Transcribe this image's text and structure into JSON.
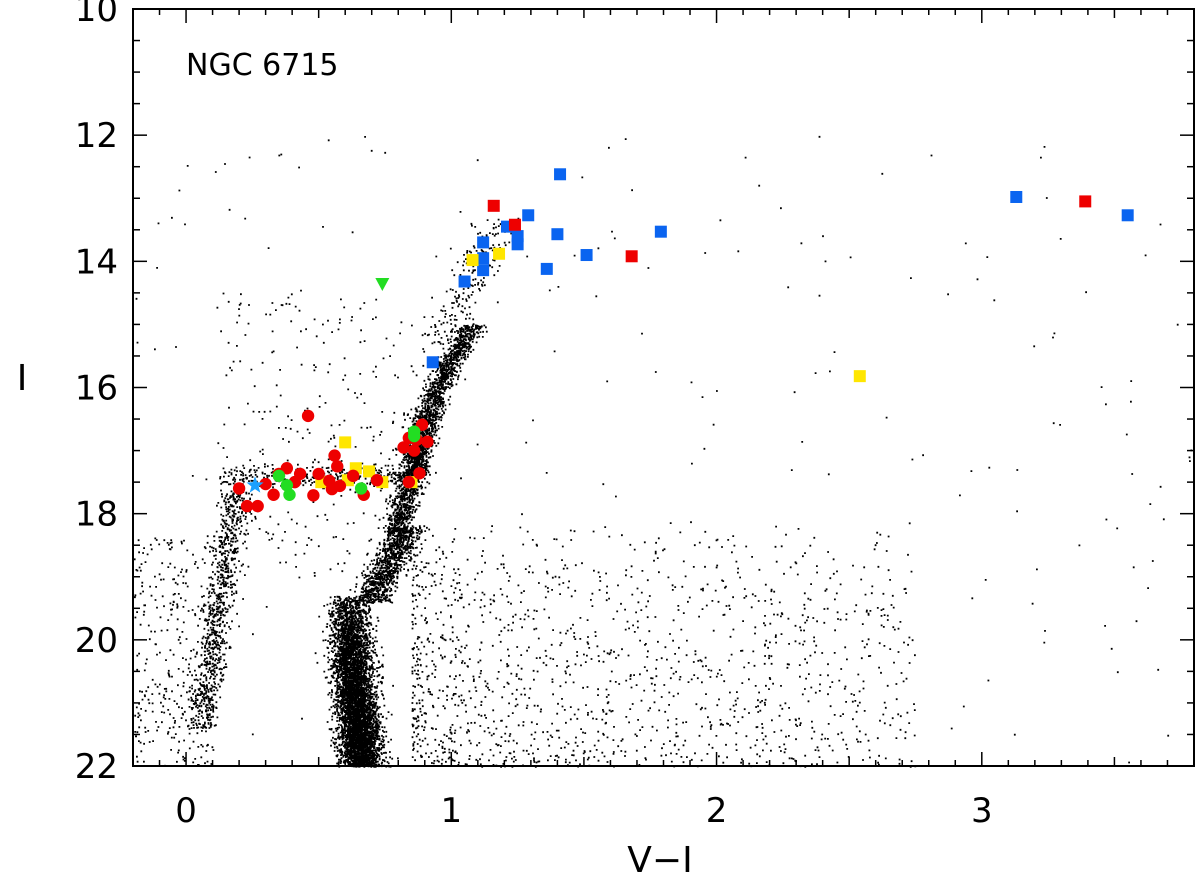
{
  "chart_data": {
    "type": "scatter",
    "title": "",
    "annotation": "NGC 6715",
    "xlabel": "V−I",
    "ylabel": "I",
    "xlim": [
      -0.2,
      3.8
    ],
    "ylim": [
      22,
      10
    ],
    "y_inverted": true,
    "x_major_ticks": [
      0,
      1,
      2,
      3
    ],
    "y_major_ticks": [
      10,
      12,
      14,
      16,
      18,
      20,
      22
    ],
    "x_tick_labels": [
      "0",
      "1",
      "2",
      "3"
    ],
    "y_tick_labels": [
      "10",
      "12",
      "14",
      "16",
      "18",
      "20",
      "22"
    ],
    "grid": false,
    "colors": {
      "background_stars": "#000000",
      "red": "#ee0000",
      "green": "#22dd22",
      "yellow": "#ffe600",
      "blue": "#0a64f0",
      "star_blue": "#1aa0ff"
    },
    "series": [
      {
        "marker": "square",
        "color": "blue",
        "points": [
          [
            1.41,
            12.62
          ],
          [
            1.29,
            13.27
          ],
          [
            1.21,
            13.45
          ],
          [
            1.25,
            13.6
          ],
          [
            1.25,
            13.73
          ],
          [
            1.12,
            13.7
          ],
          [
            1.12,
            13.95
          ],
          [
            1.12,
            14.14
          ],
          [
            1.05,
            14.32
          ],
          [
            1.4,
            13.57
          ],
          [
            1.51,
            13.9
          ],
          [
            1.36,
            14.12
          ],
          [
            1.79,
            13.53
          ],
          [
            0.93,
            15.6
          ],
          [
            3.13,
            12.98
          ],
          [
            3.55,
            13.27
          ]
        ]
      },
      {
        "marker": "square",
        "color": "red",
        "points": [
          [
            1.16,
            13.12
          ],
          [
            1.24,
            13.42
          ],
          [
            1.68,
            13.92
          ],
          [
            3.39,
            13.05
          ]
        ]
      },
      {
        "marker": "square",
        "color": "yellow",
        "points": [
          [
            1.08,
            13.98
          ],
          [
            1.18,
            13.88
          ],
          [
            0.6,
            16.87
          ],
          [
            0.51,
            17.5
          ],
          [
            0.52,
            17.5
          ],
          [
            0.61,
            17.47
          ],
          [
            0.64,
            17.28
          ],
          [
            0.69,
            17.33
          ],
          [
            0.74,
            17.5
          ],
          [
            0.85,
            17.5
          ],
          [
            2.54,
            15.82
          ]
        ]
      },
      {
        "marker": "circle",
        "color": "red",
        "points": [
          [
            0.2,
            17.6
          ],
          [
            0.23,
            17.88
          ],
          [
            0.27,
            17.88
          ],
          [
            0.3,
            17.53
          ],
          [
            0.33,
            17.7
          ],
          [
            0.35,
            17.37
          ],
          [
            0.38,
            17.28
          ],
          [
            0.41,
            17.5
          ],
          [
            0.43,
            17.37
          ],
          [
            0.46,
            16.45
          ],
          [
            0.48,
            17.71
          ],
          [
            0.5,
            17.37
          ],
          [
            0.54,
            17.48
          ],
          [
            0.55,
            17.61
          ],
          [
            0.56,
            17.08
          ],
          [
            0.57,
            17.25
          ],
          [
            0.58,
            17.56
          ],
          [
            0.63,
            17.4
          ],
          [
            0.67,
            17.7
          ],
          [
            0.72,
            17.47
          ],
          [
            0.82,
            16.95
          ],
          [
            0.84,
            16.8
          ],
          [
            0.86,
            17.0
          ],
          [
            0.87,
            16.83
          ],
          [
            0.88,
            17.36
          ],
          [
            0.89,
            16.59
          ],
          [
            0.91,
            16.86
          ],
          [
            0.84,
            17.5
          ]
        ]
      },
      {
        "marker": "circle",
        "color": "green",
        "points": [
          [
            0.35,
            17.4
          ],
          [
            0.38,
            17.55
          ],
          [
            0.39,
            17.7
          ],
          [
            0.66,
            17.6
          ],
          [
            0.86,
            16.7
          ],
          [
            0.86,
            16.77
          ]
        ]
      },
      {
        "marker": "triangle-down",
        "color": "green",
        "points": [
          [
            0.74,
            14.36
          ]
        ]
      },
      {
        "marker": "star",
        "color": "star_blue",
        "points": [
          [
            0.26,
            17.55
          ]
        ]
      }
    ]
  }
}
